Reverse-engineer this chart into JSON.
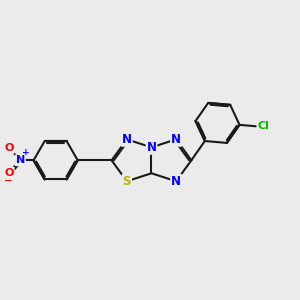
{
  "background_color": "#ebebeb",
  "bond_color": "#1a1a1a",
  "bond_width": 1.5,
  "atom_colors": {
    "N": "#0000ff",
    "S": "#b8b800",
    "Cl": "#00bb00",
    "O": "#ff0000",
    "C": "#1a1a1a"
  },
  "font_size_atom": 8.5
}
